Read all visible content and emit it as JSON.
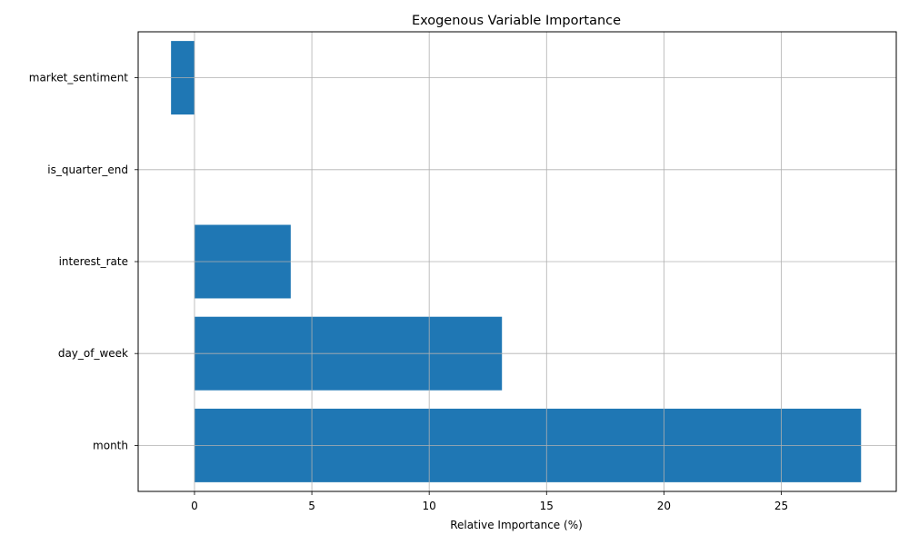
{
  "chart_data": {
    "type": "bar",
    "orientation": "horizontal",
    "title": "Exogenous Variable Importance",
    "xlabel": "Relative Importance (%)",
    "ylabel": "",
    "categories": [
      "month",
      "day_of_week",
      "interest_rate",
      "is_quarter_end",
      "market_sentiment"
    ],
    "values": [
      28.4,
      13.1,
      4.1,
      0.0,
      -1.0
    ],
    "xlim": [
      -2.4,
      29.9
    ],
    "xticks": [
      0,
      5,
      10,
      15,
      20,
      25
    ],
    "grid": true,
    "bar_color": "#1f77b4",
    "grid_color": "#b0b0b0"
  }
}
